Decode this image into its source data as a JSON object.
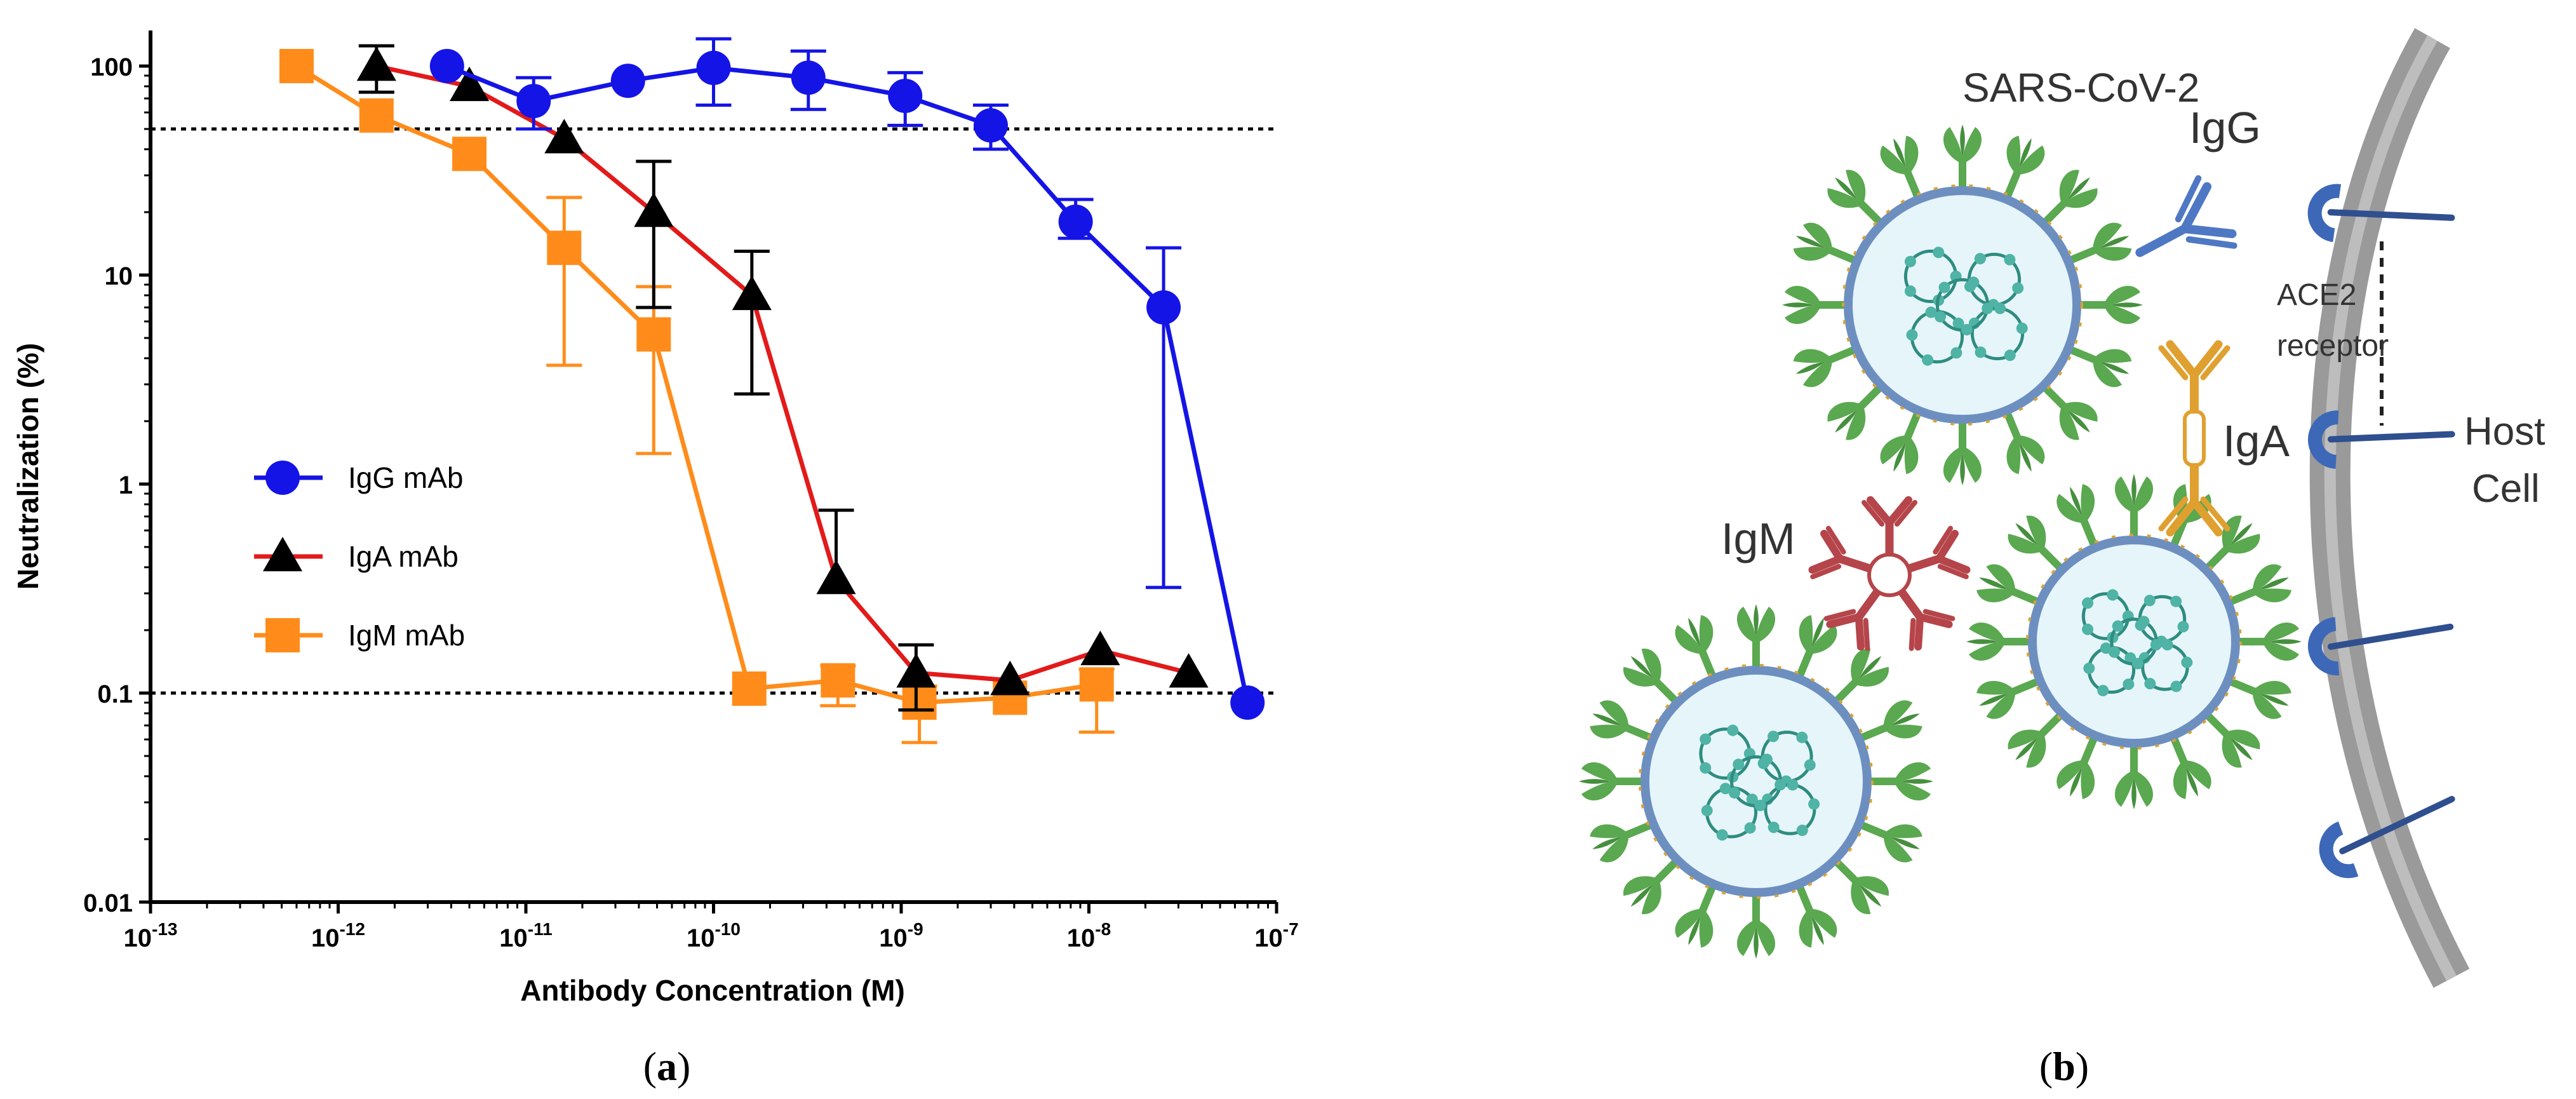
{
  "chart_data": {
    "type": "line",
    "xlabel": "Antibody Concentration (M)",
    "ylabel": "Neutralization (%)",
    "x_scale": "log",
    "y_scale": "log",
    "xlim": [
      1e-13,
      1e-07
    ],
    "ylim": [
      0.01,
      100
    ],
    "x_ticks": [
      {
        "value": 1e-13,
        "base": "10",
        "exp": "-13"
      },
      {
        "value": 1e-12,
        "base": "10",
        "exp": "-12"
      },
      {
        "value": 1e-11,
        "base": "10",
        "exp": "-11"
      },
      {
        "value": 1e-10,
        "base": "10",
        "exp": "-10"
      },
      {
        "value": 1e-09,
        "base": "10",
        "exp": "-9"
      },
      {
        "value": 1e-08,
        "base": "10",
        "exp": "-8"
      },
      {
        "value": 1e-07,
        "base": "10",
        "exp": "-7"
      }
    ],
    "y_ticks": [
      {
        "value": 100,
        "label": "100"
      },
      {
        "value": 10,
        "label": "10"
      },
      {
        "value": 1,
        "label": "1"
      },
      {
        "value": 0.1,
        "label": "0.1"
      },
      {
        "value": 0.01,
        "label": "0.01"
      }
    ],
    "reference_lines": [
      50,
      0.1
    ],
    "legend_position": "center-left",
    "series": [
      {
        "name": "IgG mAb",
        "color": "#1414e6",
        "marker": "circle",
        "x": [
          3.8e-12,
          1.1e-11,
          3.5e-11,
          1e-10,
          3.2e-10,
          1.05e-09,
          3e-09,
          8.5e-09,
          2.5e-08,
          7e-08
        ],
        "y": [
          100,
          68,
          85,
          98,
          88,
          72,
          52,
          18,
          7,
          0.09
        ],
        "err_low": [
          null,
          50,
          null,
          65,
          62,
          52,
          40,
          15,
          0.32,
          null
        ],
        "err_high": [
          null,
          88,
          null,
          135,
          118,
          93,
          65,
          23,
          13.5,
          null
        ]
      },
      {
        "name": "IgA mAb",
        "color": "#e31a1a",
        "marker": "triangle",
        "marker_color": "#000000",
        "x": [
          1.6e-12,
          5e-12,
          1.6e-11,
          4.8e-11,
          1.6e-10,
          4.5e-10,
          1.2e-09,
          3.8e-09,
          1.15e-08,
          3.4e-08
        ],
        "y": [
          100,
          80,
          45,
          20,
          8,
          0.35,
          0.125,
          0.115,
          0.16,
          0.125
        ],
        "err_low": [
          75,
          null,
          null,
          7,
          2.7,
          null,
          0.083,
          null,
          null,
          null
        ],
        "err_high": [
          125,
          null,
          null,
          35,
          13,
          0.75,
          0.17,
          null,
          null,
          null
        ]
      },
      {
        "name": "IgM mAb",
        "color": "#ff8c1a",
        "marker": "square",
        "x": [
          6e-13,
          1.6e-12,
          5e-12,
          1.6e-11,
          4.8e-11,
          1.55e-10,
          4.6e-10,
          1.25e-09,
          3.8e-09,
          1.1e-08
        ],
        "y": [
          100,
          58,
          38,
          13.5,
          5.2,
          0.105,
          0.115,
          0.09,
          0.095,
          0.11
        ],
        "err_low": [
          null,
          null,
          null,
          3.7,
          1.4,
          null,
          0.087,
          0.058,
          null,
          0.065
        ],
        "err_high": [
          null,
          null,
          null,
          23.5,
          8.8,
          null,
          0.135,
          0.108,
          null,
          0.13
        ]
      }
    ]
  },
  "panel_labels": {
    "a": {
      "open": "(",
      "letter": "a",
      "close": ")"
    },
    "b": {
      "open": "(",
      "letter": "b",
      "close": ")"
    }
  },
  "diagram": {
    "virus_label": "SARS-CoV-2",
    "igg_label": "IgG",
    "iga_label": "IgA",
    "igm_label": "IgM",
    "receptor_label_line1": "ACE2",
    "receptor_label_line2": "receptor",
    "host_label_line1": "Host",
    "host_label_line2": "Cell",
    "colors": {
      "virus_fill": "#e6f5fa",
      "virus_rim": "#6d8fc0",
      "spike": "#5aa84f",
      "rna": "#2e8c80",
      "igg": "#4f78c4",
      "iga": "#e0a030",
      "igm": "#b5454a",
      "receptor": "#3d68b8",
      "membrane": "#9a9a9a"
    }
  }
}
